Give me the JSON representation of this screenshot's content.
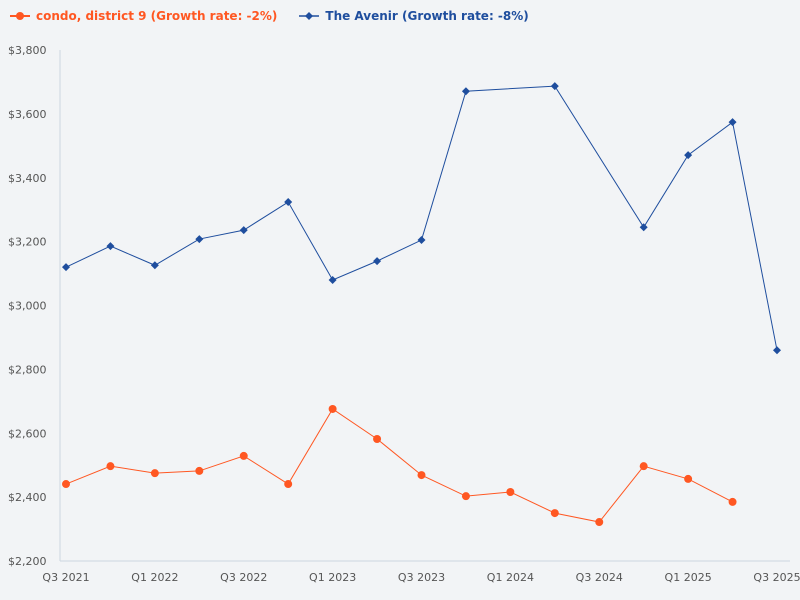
{
  "chart_data": {
    "type": "line",
    "title": "",
    "xlabel": "",
    "ylabel": "",
    "ylim": [
      2200,
      3800
    ],
    "yticks": [
      "$2,200",
      "$2,400",
      "$2,600",
      "$2,800",
      "$3,000",
      "$3,200",
      "$3,400",
      "$3,600",
      "$3,800"
    ],
    "ytick_values": [
      2200,
      2400,
      2600,
      2800,
      3000,
      3200,
      3400,
      3600,
      3800
    ],
    "categories": [
      "Q3 2021",
      "Q4 2021",
      "Q1 2022",
      "Q2 2022",
      "Q3 2022",
      "Q4 2022",
      "Q1 2023",
      "Q2 2023",
      "Q3 2023",
      "Q4 2023",
      "Q1 2024",
      "Q2 2024",
      "Q3 2024",
      "Q4 2024",
      "Q1 2025",
      "Q2 2025",
      "Q3 2025"
    ],
    "xtick_labels": [
      "Q3 2021",
      "",
      "Q1 2022",
      "",
      "Q3 2022",
      "",
      "Q1 2023",
      "",
      "Q3 2023",
      "",
      "Q1 2024",
      "",
      "Q3 2024",
      "",
      "Q1 2025",
      "",
      "Q3 2025"
    ],
    "grid": false,
    "legend_position": "top-left",
    "series": [
      {
        "name": "condo, district 9 (Growth rate: -2%)",
        "color": "#ff5722",
        "marker": "circle",
        "values": [
          2441,
          2497,
          2475,
          2482,
          2529,
          2441,
          2676,
          2582,
          2469,
          2403,
          2416,
          2350,
          2322,
          2497,
          2457,
          2385,
          null
        ]
      },
      {
        "name": "The Avenir (Growth rate: -8%)",
        "color": "#1f4e9e",
        "marker": "diamond",
        "values": [
          3120,
          3186,
          3126,
          3208,
          3236,
          3324,
          3080,
          3139,
          3205,
          3671,
          null,
          3687,
          null,
          3245,
          3471,
          3574,
          2860
        ]
      }
    ]
  }
}
